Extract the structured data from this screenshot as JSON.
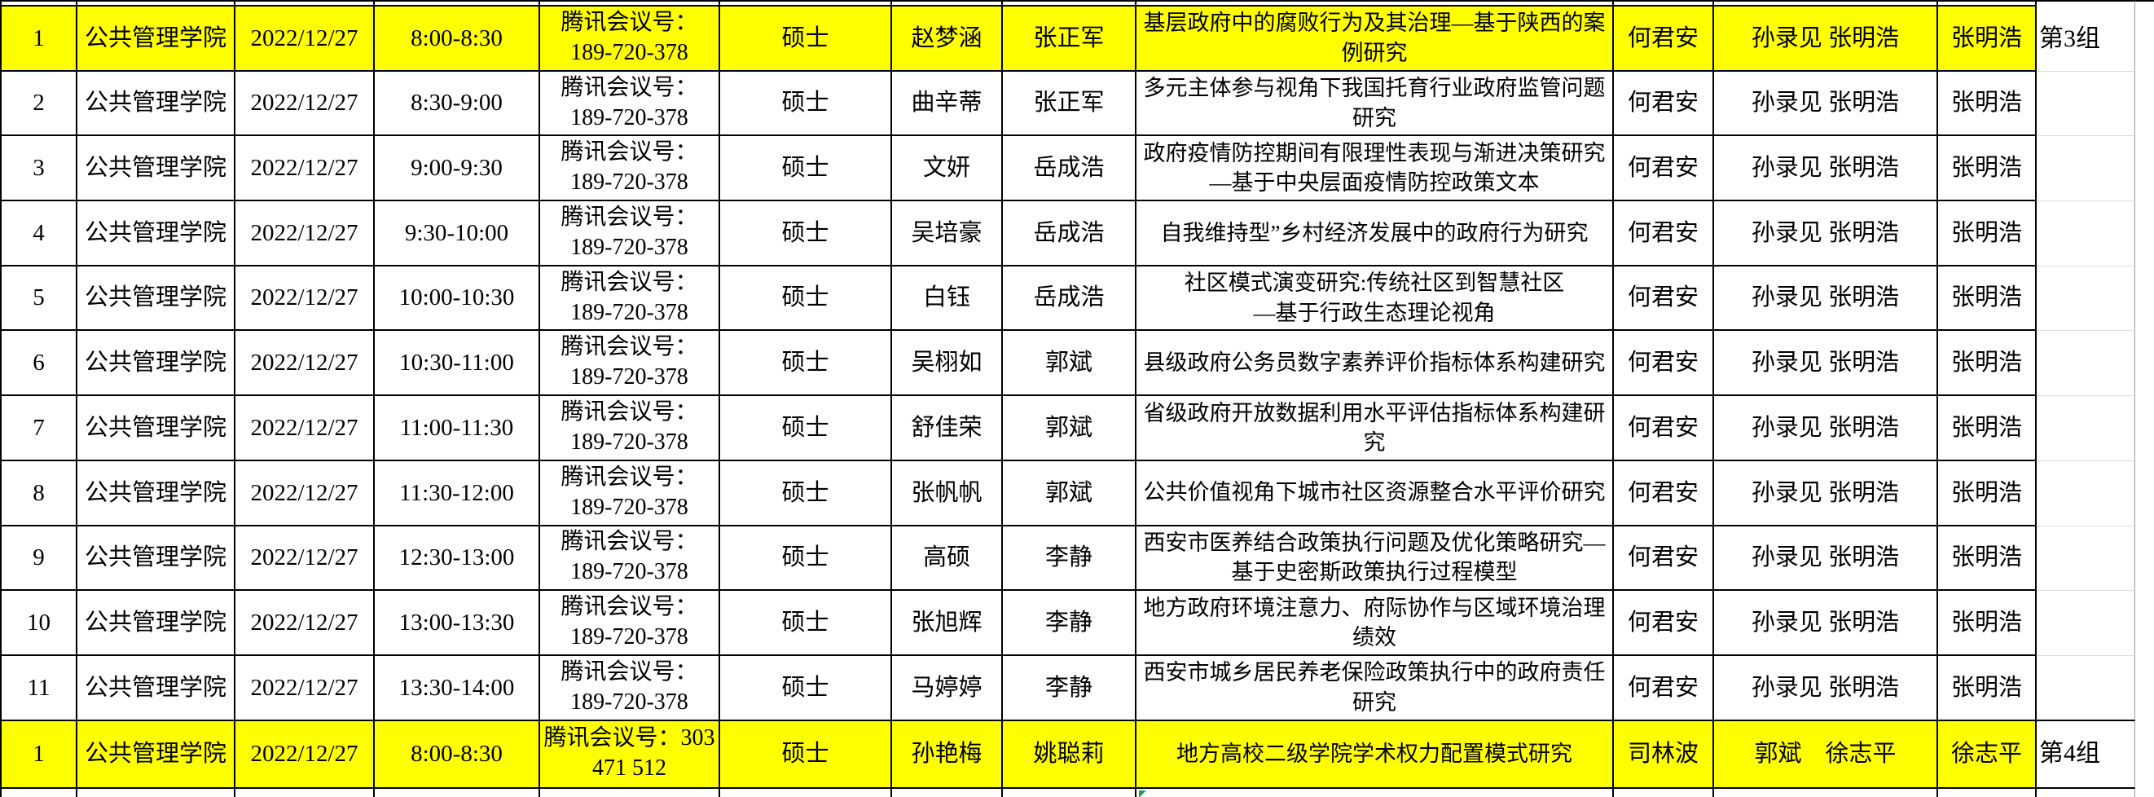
{
  "colors": {
    "highlight": "#ffff00",
    "border": "#000000",
    "gridline": "#dcdcdc"
  },
  "table": {
    "rows": [
      {
        "num": "1",
        "college": "公共管理学院",
        "date": "2022/12/27",
        "time": "8:00-8:30",
        "meeting": "腾讯会议号：\n189-720-378",
        "degree": "硕士",
        "student": "赵梦涵",
        "advisor": "张正军",
        "title": "基层政府中的腐败行为及其治理—基于陕西的案\n例研究",
        "chair": "何君安",
        "members": "孙录见 张明浩",
        "secretary": "张明浩",
        "group": "第3组",
        "highlight": true
      },
      {
        "num": "2",
        "college": "公共管理学院",
        "date": "2022/12/27",
        "time": "8:30-9:00",
        "meeting": "腾讯会议号：\n189-720-378",
        "degree": "硕士",
        "student": "曲辛蒂",
        "advisor": "张正军",
        "title": "多元主体参与视角下我国托育行业政府监管问题\n研究",
        "chair": "何君安",
        "members": "孙录见 张明浩",
        "secretary": "张明浩",
        "group": "",
        "highlight": false
      },
      {
        "num": "3",
        "college": "公共管理学院",
        "date": "2022/12/27",
        "time": "9:00-9:30",
        "meeting": "腾讯会议号：\n189-720-378",
        "degree": "硕士",
        "student": "文妍",
        "advisor": "岳成浩",
        "title": "政府疫情防控期间有限理性表现与渐进决策研究\n—基于中央层面疫情防控政策文本",
        "chair": "何君安",
        "members": "孙录见 张明浩",
        "secretary": "张明浩",
        "group": "",
        "highlight": false
      },
      {
        "num": "4",
        "college": "公共管理学院",
        "date": "2022/12/27",
        "time": "9:30-10:00",
        "meeting": "腾讯会议号：\n189-720-378",
        "degree": "硕士",
        "student": "吴培豪",
        "advisor": "岳成浩",
        "title": "自我维持型”乡村经济发展中的政府行为研究",
        "chair": "何君安",
        "members": "孙录见 张明浩",
        "secretary": "张明浩",
        "group": "",
        "highlight": false
      },
      {
        "num": "5",
        "college": "公共管理学院",
        "date": "2022/12/27",
        "time": "10:00-10:30",
        "meeting": "腾讯会议号：\n189-720-378",
        "degree": "硕士",
        "student": "白钰",
        "advisor": "岳成浩",
        "title": "社区模式演变研究:传统社区到智慧社区\n—基于行政生态理论视角",
        "chair": "何君安",
        "members": "孙录见 张明浩",
        "secretary": "张明浩",
        "group": "",
        "highlight": false
      },
      {
        "num": "6",
        "college": "公共管理学院",
        "date": "2022/12/27",
        "time": "10:30-11:00",
        "meeting": "腾讯会议号：\n189-720-378",
        "degree": "硕士",
        "student": "吴栩如",
        "advisor": "郭斌",
        "title": "县级政府公务员数字素养评价指标体系构建研究",
        "chair": "何君安",
        "members": "孙录见 张明浩",
        "secretary": "张明浩",
        "group": "",
        "highlight": false
      },
      {
        "num": "7",
        "college": "公共管理学院",
        "date": "2022/12/27",
        "time": "11:00-11:30",
        "meeting": "腾讯会议号：\n189-720-378",
        "degree": "硕士",
        "student": "舒佳荣",
        "advisor": "郭斌",
        "title": "省级政府开放数据利用水平评估指标体系构建研\n究",
        "chair": "何君安",
        "members": "孙录见 张明浩",
        "secretary": "张明浩",
        "group": "",
        "highlight": false
      },
      {
        "num": "8",
        "college": "公共管理学院",
        "date": "2022/12/27",
        "time": "11:30-12:00",
        "meeting": "腾讯会议号：\n189-720-378",
        "degree": "硕士",
        "student": "张帆帆",
        "advisor": "郭斌",
        "title": "公共价值视角下城市社区资源整合水平评价研究",
        "chair": "何君安",
        "members": "孙录见 张明浩",
        "secretary": "张明浩",
        "group": "",
        "highlight": false
      },
      {
        "num": "9",
        "college": "公共管理学院",
        "date": "2022/12/27",
        "time": "12:30-13:00",
        "meeting": "腾讯会议号：\n189-720-378",
        "degree": "硕士",
        "student": "高硕",
        "advisor": "李静",
        "title": "西安市医养结合政策执行问题及优化策略研究—\n基于史密斯政策执行过程模型",
        "chair": "何君安",
        "members": "孙录见 张明浩",
        "secretary": "张明浩",
        "group": "",
        "highlight": false
      },
      {
        "num": "10",
        "college": "公共管理学院",
        "date": "2022/12/27",
        "time": "13:00-13:30",
        "meeting": "腾讯会议号：\n189-720-378",
        "degree": "硕士",
        "student": "张旭辉",
        "advisor": "李静",
        "title": "地方政府环境注意力、府际协作与区域环境治理\n绩效",
        "chair": "何君安",
        "members": "孙录见 张明浩",
        "secretary": "张明浩",
        "group": "",
        "highlight": false
      },
      {
        "num": "11",
        "college": "公共管理学院",
        "date": "2022/12/27",
        "time": "13:30-14:00",
        "meeting": "腾讯会议号：\n189-720-378",
        "degree": "硕士",
        "student": "马婷婷",
        "advisor": "李静",
        "title": "西安市城乡居民养老保险政策执行中的政府责任\n研究",
        "chair": "何君安",
        "members": "孙录见 张明浩",
        "secretary": "张明浩",
        "group": "",
        "highlight": false
      },
      {
        "num": "1",
        "college": "公共管理学院",
        "date": "2022/12/27",
        "time": "8:00-8:30",
        "meeting": "腾讯会议号：303\n471 512",
        "degree": "硕士",
        "student": "孙艳梅",
        "advisor": "姚聪莉",
        "title": "地方高校二级学院学术权力配置模式研究",
        "chair": "司林波",
        "members": "郭斌　徐志平",
        "secretary": "徐志平",
        "group": "第4组",
        "highlight": true
      }
    ]
  }
}
